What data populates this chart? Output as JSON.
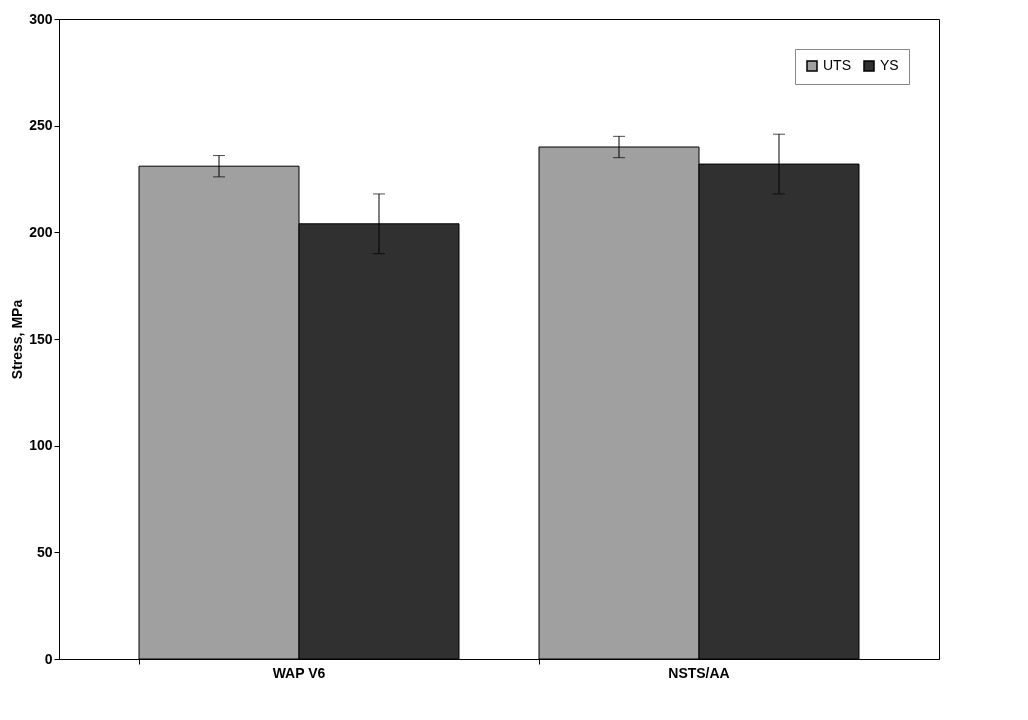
{
  "chart_data": {
    "type": "bar",
    "ylabel": "Stress, MPa",
    "categories": [
      "WAP V6",
      "NSTS/AA"
    ],
    "series": [
      {
        "name": "UTS",
        "color": "#a0a0a0",
        "values": [
          231,
          240
        ],
        "errors": [
          5,
          5
        ]
      },
      {
        "name": "YS",
        "color": "#303030",
        "values": [
          204,
          232
        ],
        "errors": [
          14,
          14
        ]
      }
    ],
    "ylim": [
      0,
      300
    ],
    "yticks": [
      0,
      50,
      100,
      150,
      200,
      250,
      300
    ],
    "grid": false,
    "legend": "top right"
  }
}
